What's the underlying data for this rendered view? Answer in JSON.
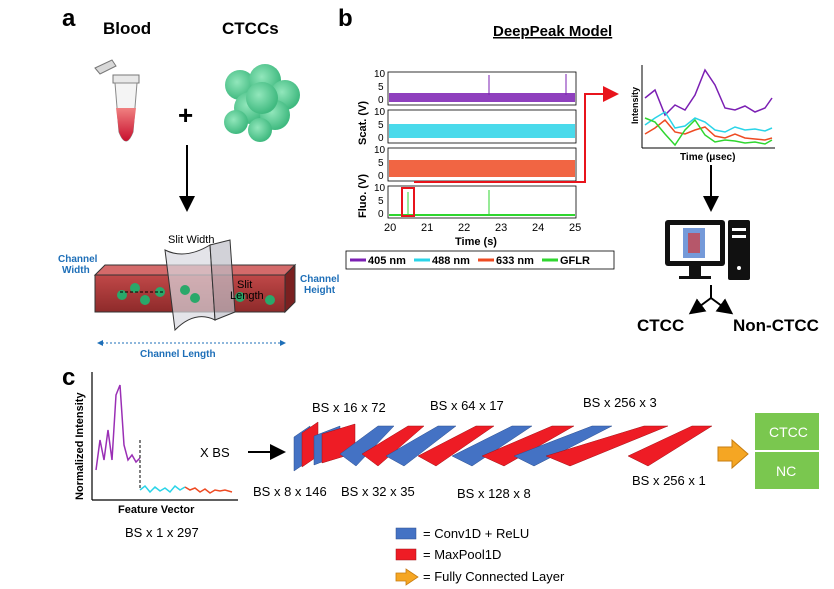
{
  "panel_a": {
    "label": "a",
    "blood_label": "Blood",
    "ctcc_label": "CTCCs",
    "plus": "+",
    "channel": {
      "slit_width": "Slit Width",
      "channel_width": "Channel\nWidth",
      "slit_length": "Slit\nLength",
      "channel_height": "Channel\nHeight",
      "channel_length": "Channel Length"
    }
  },
  "panel_b": {
    "label": "b",
    "title": "DeepPeak Model",
    "scat_label": "Scat. (V)",
    "fluo_label": "Fluo. (V)",
    "x_label": "Time (s)",
    "x_ticks": [
      "20",
      "21",
      "22",
      "23",
      "24",
      "25"
    ],
    "y_ticks": [
      "10",
      "5",
      "0"
    ],
    "legend": [
      {
        "label": "405 nm",
        "color": "#7b1fb3"
      },
      {
        "label": "488 nm",
        "color": "#2ad4e8"
      },
      {
        "label": "633 nm",
        "color": "#ee4a22"
      },
      {
        "label": "GFLR",
        "color": "#2fd62f"
      }
    ],
    "inset": {
      "y_label": "Intensity",
      "x_label": "Time (μsec)"
    },
    "outputs": {
      "ctcc": "CTCC",
      "non_ctcc": "Non-CTCC"
    }
  },
  "panel_c": {
    "label": "c",
    "plot": {
      "y_label": "Normalized Intensity",
      "x_label": "Feature Vector"
    },
    "input_size": "BS x 1 x 297",
    "times_bs": "X BS",
    "layers_top": [
      "BS x 16 x 72",
      "BS x 64 x 17",
      "BS x 256 x 3"
    ],
    "layers_bottom": [
      "BS x 8 x 146",
      "BS x 32 x 35",
      "BS x 128 x 8",
      "BS x 256 x 1"
    ],
    "outputs": [
      "CTCC",
      "NC"
    ],
    "legend": [
      {
        "label": "= Conv1D + ReLU",
        "color": "#4472c4"
      },
      {
        "label": "= MaxPool1D",
        "color": "#ee1c25"
      },
      {
        "label": "= Fully Connected Layer",
        "color": "#f5a623"
      }
    ]
  },
  "colors": {
    "conv": "#4472c4",
    "pool": "#ee1c25",
    "output_box": "#7ac74f",
    "arrow_red": "#e8141c",
    "annotation_blue": "#1e6fb8"
  }
}
